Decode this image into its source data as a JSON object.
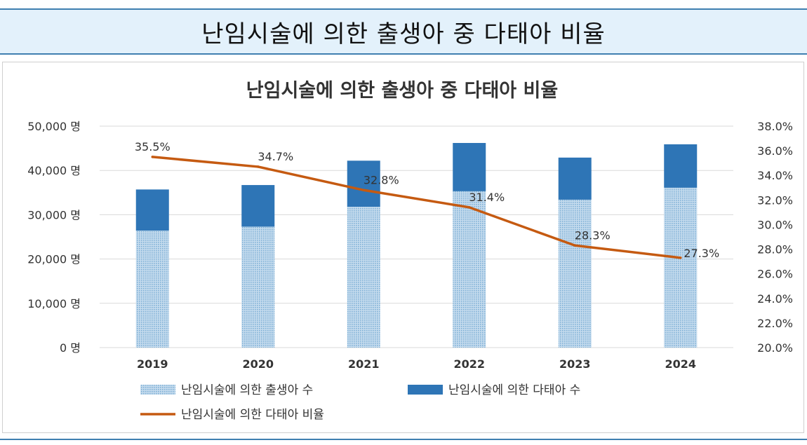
{
  "banner": {
    "title": "난임시술에 의한 출생아 중 다태아 비율"
  },
  "colors": {
    "banner_bg": "#e3f1fb",
    "banner_border": "#3f7fb0",
    "singleton_bar": "#9dc3e0",
    "multiple_bar": "#2e75b6",
    "rate_line": "#c55a11",
    "gridline": "#d9d9d9"
  },
  "chart_data": {
    "type": "bar",
    "title": "난임시술에 의한 출생아 중 다태아 비율",
    "categories": [
      "2019",
      "2020",
      "2021",
      "2022",
      "2023",
      "2024"
    ],
    "series": [
      {
        "name": "난임시술에 의한 출생아 수",
        "kind": "stacked-bar",
        "pattern": "dotted",
        "values": [
          26400,
          27300,
          31800,
          35300,
          33400,
          36100
        ]
      },
      {
        "name": "난임시술에 의한 다태아 수",
        "kind": "stacked-bar",
        "values": [
          9300,
          9400,
          10400,
          10900,
          9500,
          9800
        ]
      },
      {
        "name": "난임시술에 의한 다태아 비율",
        "kind": "line",
        "axis": "right",
        "values": [
          35.5,
          34.7,
          32.8,
          31.4,
          28.3,
          27.3
        ],
        "labels": [
          "35.5%",
          "34.7%",
          "32.8%",
          "31.4%",
          "28.3%",
          "27.3%"
        ]
      }
    ],
    "y_left": {
      "min": 0,
      "max": 50000,
      "ticks": [
        0,
        10000,
        20000,
        30000,
        40000,
        50000
      ],
      "tick_labels": [
        "0 명",
        "10,000 명",
        "20,000 명",
        "30,000 명",
        "40,000 명",
        "50,000 명"
      ]
    },
    "y_right": {
      "min": 20,
      "max": 38,
      "ticks": [
        20,
        22,
        24,
        26,
        28,
        30,
        32,
        34,
        36,
        38
      ],
      "tick_labels": [
        "20.0%",
        "22.0%",
        "24.0%",
        "26.0%",
        "28.0%",
        "30.0%",
        "32.0%",
        "34.0%",
        "36.0%",
        "38.0%"
      ]
    },
    "grid": true,
    "legend_position": "bottom"
  }
}
